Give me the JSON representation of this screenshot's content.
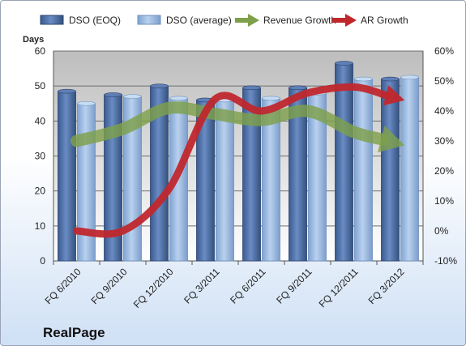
{
  "chart_data": {
    "type": "bar",
    "title": "RealPage",
    "ylabel": "Days",
    "ylim": [
      0,
      60
    ],
    "yticks": [
      "0",
      "10",
      "20",
      "30",
      "40",
      "50",
      "60"
    ],
    "y2lim": [
      -10,
      60
    ],
    "y2ticks": [
      "-10%",
      "0%",
      "10%",
      "20%",
      "30%",
      "40%",
      "50%",
      "60%"
    ],
    "categories": [
      "FQ 6/2010",
      "FQ 9/2010",
      "FQ 12/2010",
      "FQ 3/2011",
      "FQ 6/2011",
      "FQ 9/2011",
      "FQ 12/2011",
      "FQ 3/2012"
    ],
    "series": [
      {
        "name": "DSO (EOQ)",
        "kind": "bar",
        "color": "#4f6fa5",
        "values": [
          48.5,
          47.5,
          50,
          46,
          49.5,
          49.5,
          56.5,
          52
        ]
      },
      {
        "name": "DSO (average)",
        "kind": "bar",
        "color": "#93b4dc",
        "values": [
          45,
          47,
          46.5,
          46,
          46.5,
          48,
          52,
          52.5
        ]
      },
      {
        "name": "Revenue Growth",
        "kind": "arrow-line",
        "axis": "secondary",
        "color": "#7ea04a",
        "values": [
          30,
          34,
          41,
          39,
          37,
          40,
          33,
          29
        ]
      },
      {
        "name": "AR Growth",
        "kind": "arrow-line",
        "axis": "secondary",
        "color": "#c0272d",
        "values": [
          0,
          0,
          14,
          44,
          40,
          46,
          48,
          44
        ]
      }
    ],
    "grid": true,
    "legend": "top"
  }
}
